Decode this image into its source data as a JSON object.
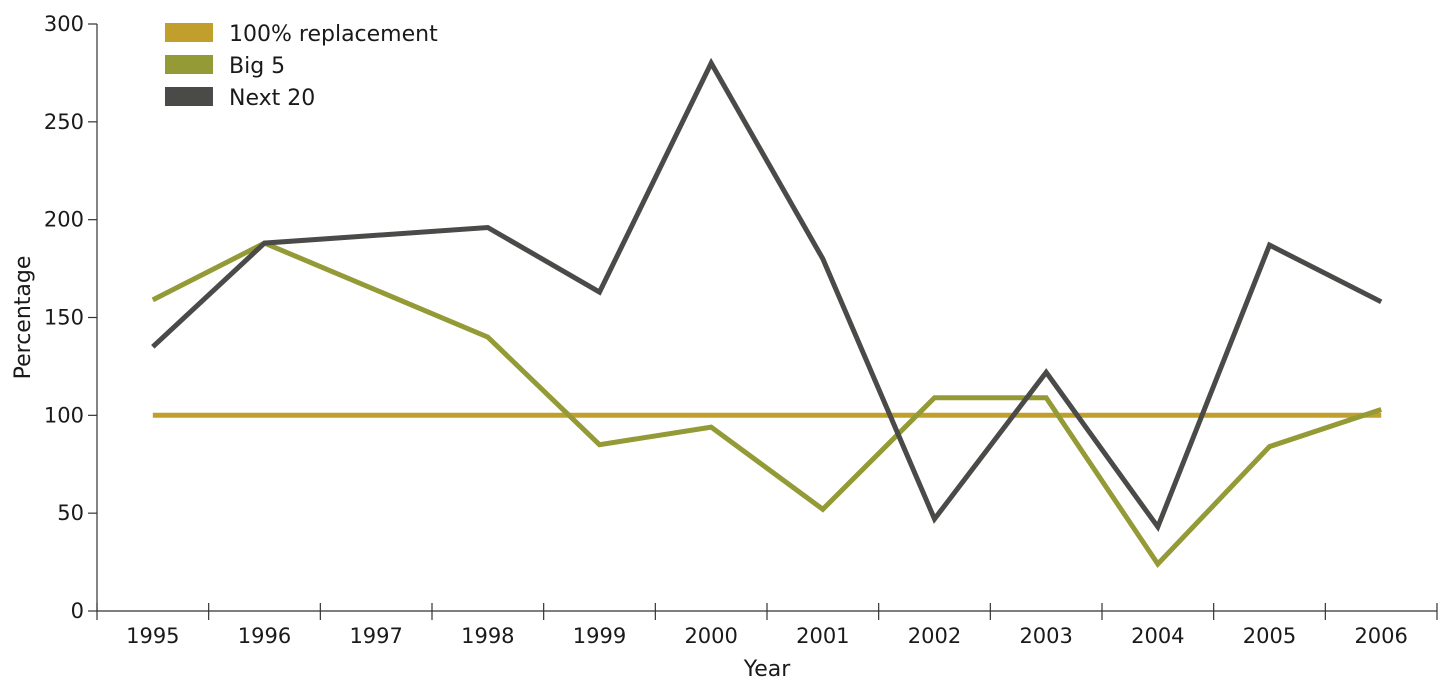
{
  "chart_data": {
    "type": "line",
    "title": "",
    "xlabel": "Year",
    "ylabel": "Percentage",
    "categories": [
      "1995",
      "1996",
      "1997",
      "1998",
      "1999",
      "2000",
      "2001",
      "2002",
      "2003",
      "2004",
      "2005",
      "2006"
    ],
    "ylim": [
      0,
      300
    ],
    "yticks": [
      "0",
      "50",
      "100",
      "150",
      "200",
      "250",
      "300"
    ],
    "grid": false,
    "legend_position": "top-left",
    "series": [
      {
        "name": "100% replacement",
        "color": "#c19f2c",
        "values": [
          100,
          100,
          100,
          100,
          100,
          100,
          100,
          100,
          100,
          100,
          100,
          100
        ]
      },
      {
        "name": "Big 5",
        "color": "#939a36",
        "values": [
          159,
          188,
          null,
          140,
          85,
          94,
          52,
          109,
          109,
          24,
          84,
          103
        ]
      },
      {
        "name": "Next 20",
        "color": "#4a4a48",
        "values": [
          135,
          188,
          null,
          196,
          163,
          280,
          180,
          47,
          122,
          43,
          187,
          158
        ]
      }
    ]
  }
}
